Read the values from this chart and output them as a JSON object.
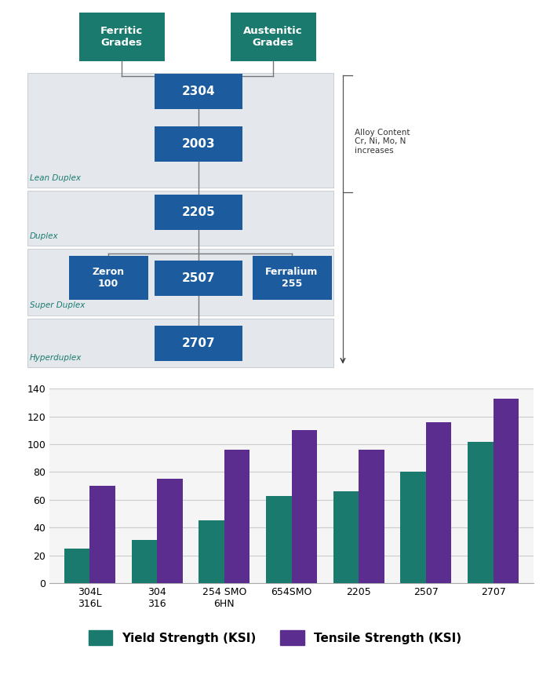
{
  "diagram": {
    "ferritic_label": "Ferritic\nGrades",
    "austenitic_label": "Austenitic\nGrades",
    "header_box_color": "#1a7a6e",
    "node_box_color": "#1c5c9e",
    "node_text_color": "#ffffff",
    "header_text_color": "#ffffff",
    "band_color": "#e4e8ed",
    "band_border_color": "#c8cdd4",
    "label_color": "#1a7a6e",
    "annotation_color": "#333333",
    "line_color": "#777777",
    "side_nodes": [
      "Zeron\n100",
      "Ferralium\n255"
    ],
    "band_labels": [
      "Lean Duplex",
      "Duplex",
      "Super Duplex",
      "Hyperduplex"
    ],
    "annotation_text": "Alloy Content\nCr, Ni, Mo, N\nincreases"
  },
  "bar_chart": {
    "categories": [
      "304L\n316L",
      "304\n316",
      "254 SMO\n6HN",
      "654SMO",
      "2205",
      "2507",
      "2707"
    ],
    "yield_strength": [
      25,
      31,
      45,
      63,
      66,
      80,
      102
    ],
    "tensile_strength": [
      70,
      75,
      96,
      110,
      96,
      116,
      133
    ],
    "yield_color": "#1a7a6e",
    "tensile_color": "#5b2d8e",
    "ylabel_max": 140,
    "yticks": [
      0,
      20,
      40,
      60,
      80,
      100,
      120,
      140
    ],
    "legend_yield": "Yield Strength (KSI)",
    "legend_tensile": "Tensile Strength (KSI)",
    "bg_color": "#ffffff",
    "grid_color": "#cccccc"
  }
}
